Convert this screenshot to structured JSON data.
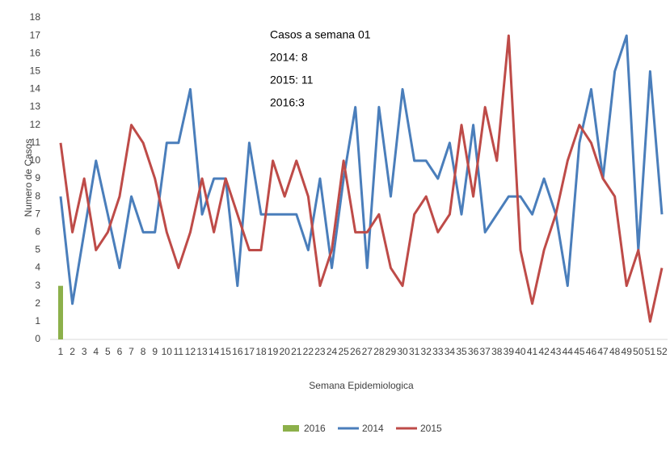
{
  "chart_data": {
    "type": "line",
    "categories": [
      "1",
      "2",
      "3",
      "4",
      "5",
      "6",
      "7",
      "8",
      "9",
      "10",
      "11",
      "12",
      "13",
      "14",
      "15",
      "16",
      "17",
      "18",
      "19",
      "20",
      "21",
      "22",
      "23",
      "24",
      "25",
      "26",
      "27",
      "28",
      "29",
      "30",
      "31",
      "32",
      "33",
      "34",
      "35",
      "36",
      "37",
      "38",
      "39",
      "40",
      "41",
      "42",
      "43",
      "44",
      "45",
      "46",
      "47",
      "48",
      "49",
      "50",
      "51",
      "52"
    ],
    "series": [
      {
        "name": "2016",
        "type": "bar",
        "color": "#8cb04a",
        "values": [
          3,
          null,
          null,
          null,
          null,
          null,
          null,
          null,
          null,
          null,
          null,
          null,
          null,
          null,
          null,
          null,
          null,
          null,
          null,
          null,
          null,
          null,
          null,
          null,
          null,
          null,
          null,
          null,
          null,
          null,
          null,
          null,
          null,
          null,
          null,
          null,
          null,
          null,
          null,
          null,
          null,
          null,
          null,
          null,
          null,
          null,
          null,
          null,
          null,
          null,
          null,
          null
        ]
      },
      {
        "name": "2014",
        "type": "line",
        "color": "#4a7ebb",
        "values": [
          8,
          2,
          6,
          10,
          7,
          4,
          8,
          6,
          6,
          11,
          11,
          14,
          7,
          9,
          9,
          3,
          11,
          7,
          7,
          7,
          7,
          5,
          9,
          4,
          9,
          13,
          4,
          13,
          8,
          14,
          10,
          10,
          9,
          11,
          7,
          12,
          6,
          7,
          8,
          8,
          7,
          9,
          7,
          3,
          11,
          14,
          9,
          15,
          17,
          5,
          15,
          7
        ]
      },
      {
        "name": "2015",
        "type": "line",
        "color": "#be4b48",
        "values": [
          11,
          6,
          9,
          5,
          6,
          8,
          12,
          11,
          9,
          6,
          4,
          6,
          9,
          6,
          9,
          7,
          5,
          5,
          10,
          8,
          10,
          8,
          3,
          5,
          10,
          6,
          6,
          7,
          4,
          3,
          7,
          8,
          6,
          7,
          12,
          8,
          13,
          10,
          17,
          5,
          2,
          5,
          7,
          10,
          12,
          11,
          9,
          8,
          3,
          5,
          1,
          4
        ]
      }
    ],
    "ylim": [
      0,
      18
    ],
    "yticks": [
      0,
      1,
      2,
      3,
      4,
      5,
      6,
      7,
      8,
      9,
      10,
      11,
      12,
      13,
      14,
      15,
      16,
      17,
      18
    ],
    "xlabel": "Semana Epidemiologica",
    "ylabel": "Numero de Casos",
    "annotation": [
      "Casos a semana 01",
      "2014: 8",
      "2015: 11",
      "2016:3"
    ],
    "grid": false,
    "legend": "bottom"
  }
}
